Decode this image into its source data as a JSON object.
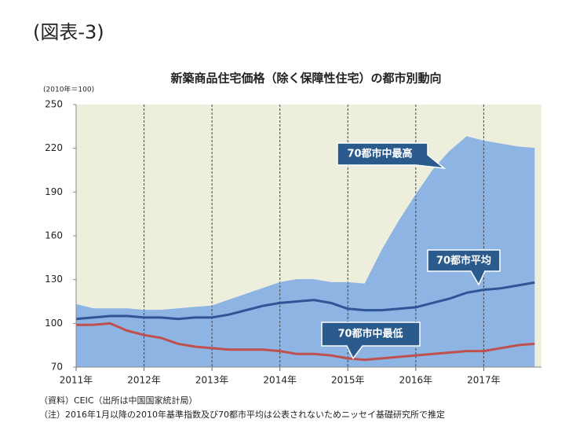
{
  "header": "(図表-3)",
  "chart_data": {
    "type": "line",
    "title": "新築商品住宅価格（除く保障性住宅）の都市別動向",
    "unit_label": "(2010年＝100)",
    "x": [
      2011,
      2011.25,
      2011.5,
      2011.75,
      2012,
      2012.25,
      2012.5,
      2012.75,
      2013,
      2013.25,
      2013.5,
      2013.75,
      2014,
      2014.25,
      2014.5,
      2014.75,
      2015,
      2015.25,
      2015.5,
      2015.75,
      2016,
      2016.25,
      2016.5,
      2016.75,
      2017,
      2017.25,
      2017.5,
      2017.75
    ],
    "series": [
      {
        "name": "70都市中最高",
        "color": "#8db4e2",
        "fill": true,
        "values": [
          113,
          110,
          110,
          110,
          109,
          109,
          110,
          111,
          112,
          116,
          120,
          124,
          128,
          130,
          130,
          128,
          128,
          127,
          150,
          170,
          188,
          205,
          218,
          228,
          225,
          223,
          221,
          220
        ]
      },
      {
        "name": "70都市平均",
        "color": "#2f5597",
        "fill": false,
        "values": [
          103,
          104,
          105,
          105,
          104,
          104,
          103,
          104,
          104,
          106,
          109,
          112,
          114,
          115,
          116,
          114,
          110,
          109,
          109,
          110,
          111,
          114,
          117,
          121,
          123,
          124,
          126,
          128
        ]
      },
      {
        "name": "70都市中最低",
        "color": "#c0504d",
        "fill": false,
        "values": [
          99,
          99,
          100,
          95,
          92,
          90,
          86,
          84,
          83,
          82,
          82,
          82,
          81,
          79,
          79,
          78,
          76,
          75,
          76,
          77,
          78,
          79,
          80,
          81,
          81,
          83,
          85,
          86
        ]
      }
    ],
    "xlim": [
      2011,
      2017.85
    ],
    "xticks": [
      {
        "value": 2011,
        "label": "2011年"
      },
      {
        "value": 2012,
        "label": "2012年"
      },
      {
        "value": 2013,
        "label": "2013年"
      },
      {
        "value": 2014,
        "label": "2014年"
      },
      {
        "value": 2015,
        "label": "2015年"
      },
      {
        "value": 2016,
        "label": "2016年"
      },
      {
        "value": 2017,
        "label": "2017年"
      }
    ],
    "ylim": [
      70,
      250
    ],
    "yticks": [
      70,
      100,
      130,
      160,
      190,
      220,
      250
    ],
    "plot_background": "#eeeedd",
    "grid": true
  },
  "source": "（資料）CEIC（出所は中国国家統計局）",
  "note": "（注）2016年1月以降の2010年基準指数及び70都市平均は公表されないためニッセイ基礎研究所で推定"
}
